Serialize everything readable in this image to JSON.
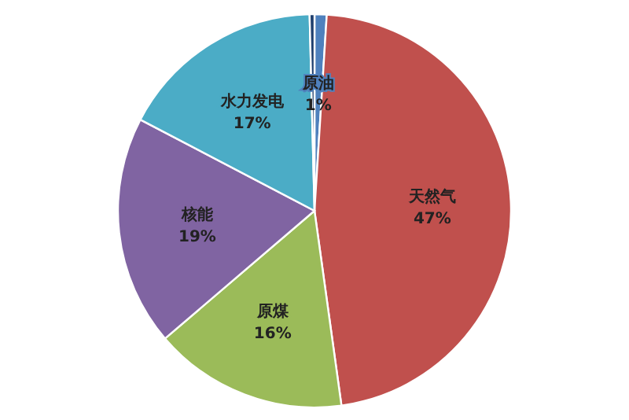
{
  "chart_data": {
    "type": "pie",
    "categories": [
      "原油",
      "天然气",
      "原煤",
      "核能",
      "水力发电",
      null
    ],
    "values": [
      1,
      47,
      16,
      19,
      17,
      0.4
    ],
    "colors": [
      "#4f81bd",
      "#c0504d",
      "#9bbb59",
      "#8064a2",
      "#4bacc6",
      "#1f3f6e"
    ],
    "value_labels": [
      "1%",
      "47%",
      "16%",
      "19%",
      "17%",
      null
    ]
  }
}
